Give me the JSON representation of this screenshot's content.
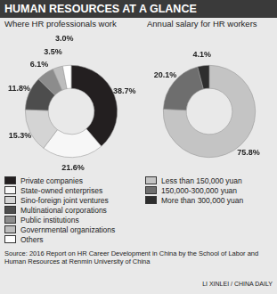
{
  "title": "HUMAN RESOURCES AT A GLANCE",
  "chart_data": [
    {
      "type": "doughnut",
      "title": "Where HR professionals work",
      "categories": [
        "Private companies",
        "State-owned enterprises",
        "Sino-foreign joint ventures",
        "Multinational corporations",
        "Public institutions",
        "Governmental organizations",
        "Others"
      ],
      "values": [
        38.7,
        21.6,
        15.3,
        11.8,
        6.1,
        3.5,
        3.0
      ],
      "value_labels": [
        "38.7%",
        "21.6%",
        "15.3%",
        "11.8%",
        "6.1%",
        "3.5%",
        "3.0%"
      ],
      "colors": [
        "#231f20",
        "#f7f7f7",
        "#d4d4d4",
        "#4d4d4d",
        "#8c8c8c",
        "#bdbdbd",
        "#ffffff"
      ],
      "data_labels": true,
      "legend": "bottom"
    },
    {
      "type": "doughnut",
      "title": "Annual salary for HR workers",
      "categories": [
        "Less than 150,000 yuan",
        "150,000-300,000 yuan",
        "More than 300,000 yuan"
      ],
      "values": [
        75.8,
        20.1,
        4.1
      ],
      "value_labels": [
        "75.8%",
        "20.1%",
        "4.1%"
      ],
      "colors": [
        "#c4c4c4",
        "#6e6e6e",
        "#2e2e2e"
      ],
      "data_labels": true,
      "legend": "bottom"
    }
  ],
  "source": "Source: 2016 Report on HR Career Development in China by the School of Labor and Human Resources at Renmin University of China",
  "credit": "LI XINLEI / CHINA DAILY"
}
